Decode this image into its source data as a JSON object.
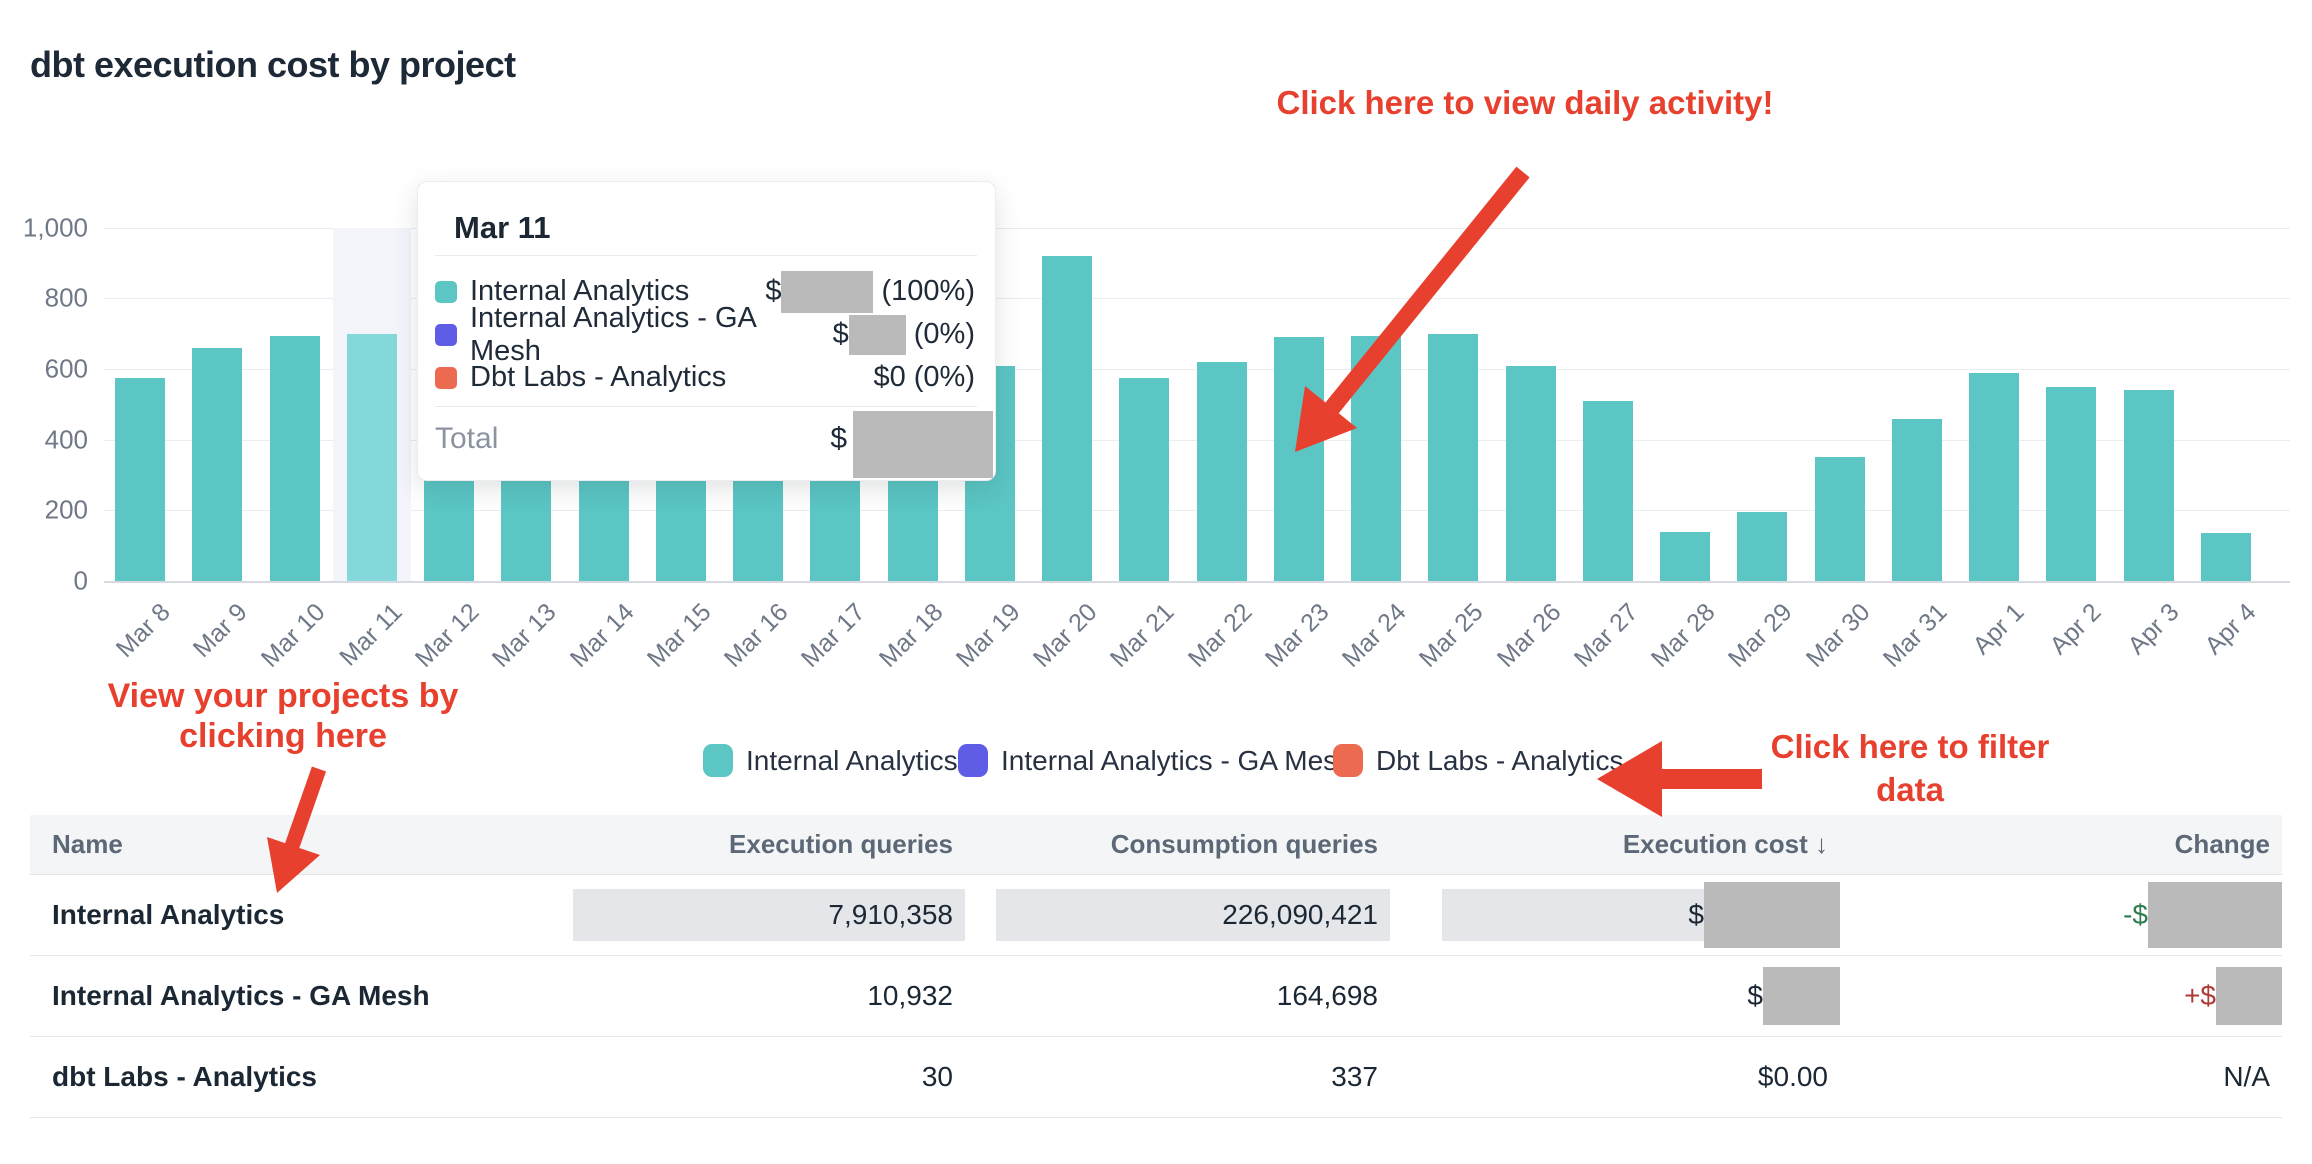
{
  "title": "dbt execution cost by project",
  "annotations": {
    "color": "#e8402e",
    "daily_activity": "Click here to view daily activity!",
    "projects_line1": "View your projects by",
    "projects_line2": "clicking here",
    "filter_line1": "Click here to filter",
    "filter_line2": "data"
  },
  "chart_data": {
    "type": "bar",
    "title": "dbt execution cost by project",
    "x": [
      "Mar 8",
      "Mar 9",
      "Mar 10",
      "Mar 11",
      "Mar 12",
      "Mar 13",
      "Mar 14",
      "Mar 15",
      "Mar 16",
      "Mar 17",
      "Mar 18",
      "Mar 19",
      "Mar 20",
      "Mar 21",
      "Mar 22",
      "Mar 23",
      "Mar 24",
      "Mar 25",
      "Mar 26",
      "Mar 27",
      "Mar 28",
      "Mar 29",
      "Mar 30",
      "Mar 31",
      "Apr 1",
      "Apr 2",
      "Apr 3",
      "Apr 4"
    ],
    "values": [
      575,
      660,
      695,
      700,
      290,
      290,
      290,
      290,
      290,
      290,
      290,
      610,
      920,
      575,
      620,
      690,
      695,
      700,
      610,
      510,
      140,
      195,
      350,
      460,
      590,
      550,
      540,
      135
    ],
    "ylim": [
      0,
      1000
    ],
    "yticks": [
      0,
      200,
      400,
      600,
      800,
      1000
    ],
    "ytick_labels": [
      "0",
      "200",
      "400",
      "600",
      "800",
      "1,000"
    ],
    "grid": true,
    "bar_color": "#5bc6c4",
    "highlighted_bar": "Mar 11",
    "highlight_bar_color": "#85d8da",
    "highlight_band_color": "#f3f5fa",
    "legend_position": "bottom",
    "series_names": [
      "Internal Analytics",
      "Internal Analytics - GA Mesh",
      "Dbt Labs - Analytics"
    ]
  },
  "tooltip": {
    "title": "Mar 11",
    "rows": [
      {
        "label": "Internal Analytics",
        "color": "#5bc6c4",
        "prefix": "$",
        "redacted": true,
        "pct": "(100%)"
      },
      {
        "label": "Internal Analytics - GA Mesh",
        "color": "#5f5ce6",
        "prefix": "$",
        "redacted": true,
        "pct": "(0%)"
      },
      {
        "label": "Dbt Labs - Analytics",
        "color": "#ec6a50",
        "value": "$0 (0%)"
      }
    ],
    "total_label": "Total",
    "total": {
      "prefix": "$",
      "redacted": true
    }
  },
  "legend": {
    "items": [
      {
        "label": "Internal Analytics",
        "color": "#5bc6c4"
      },
      {
        "label": "Internal Analytics - GA Mesh",
        "color": "#5f5ce6"
      },
      {
        "label": "Dbt Labs - Analytics",
        "color": "#ec6a50"
      }
    ]
  },
  "table": {
    "headers": {
      "name": "Name",
      "execution_queries": "Execution queries",
      "consumption_queries": "Consumption queries",
      "execution_cost": "Execution cost",
      "sort_icon": "↓",
      "change": "Change"
    },
    "rows": [
      {
        "name": "Internal Analytics",
        "execution_queries": "7,910,358",
        "consumption_queries": "226,090,421",
        "execution_cost": {
          "prefix": "$",
          "redacted": true
        },
        "change": {
          "prefix": "-$",
          "redacted": true,
          "tone": "neg"
        },
        "highlighted": true
      },
      {
        "name": "Internal Analytics - GA Mesh",
        "execution_queries": "10,932",
        "consumption_queries": "164,698",
        "execution_cost": {
          "prefix": "$",
          "redacted": true
        },
        "change": {
          "prefix": "+$",
          "redacted": true,
          "tone": "pos"
        },
        "highlighted": false
      },
      {
        "name": "dbt Labs - Analytics",
        "execution_queries": "30",
        "consumption_queries": "337",
        "execution_cost": {
          "text": "$0.00"
        },
        "change": {
          "text": "N/A"
        },
        "highlighted": false
      }
    ]
  }
}
